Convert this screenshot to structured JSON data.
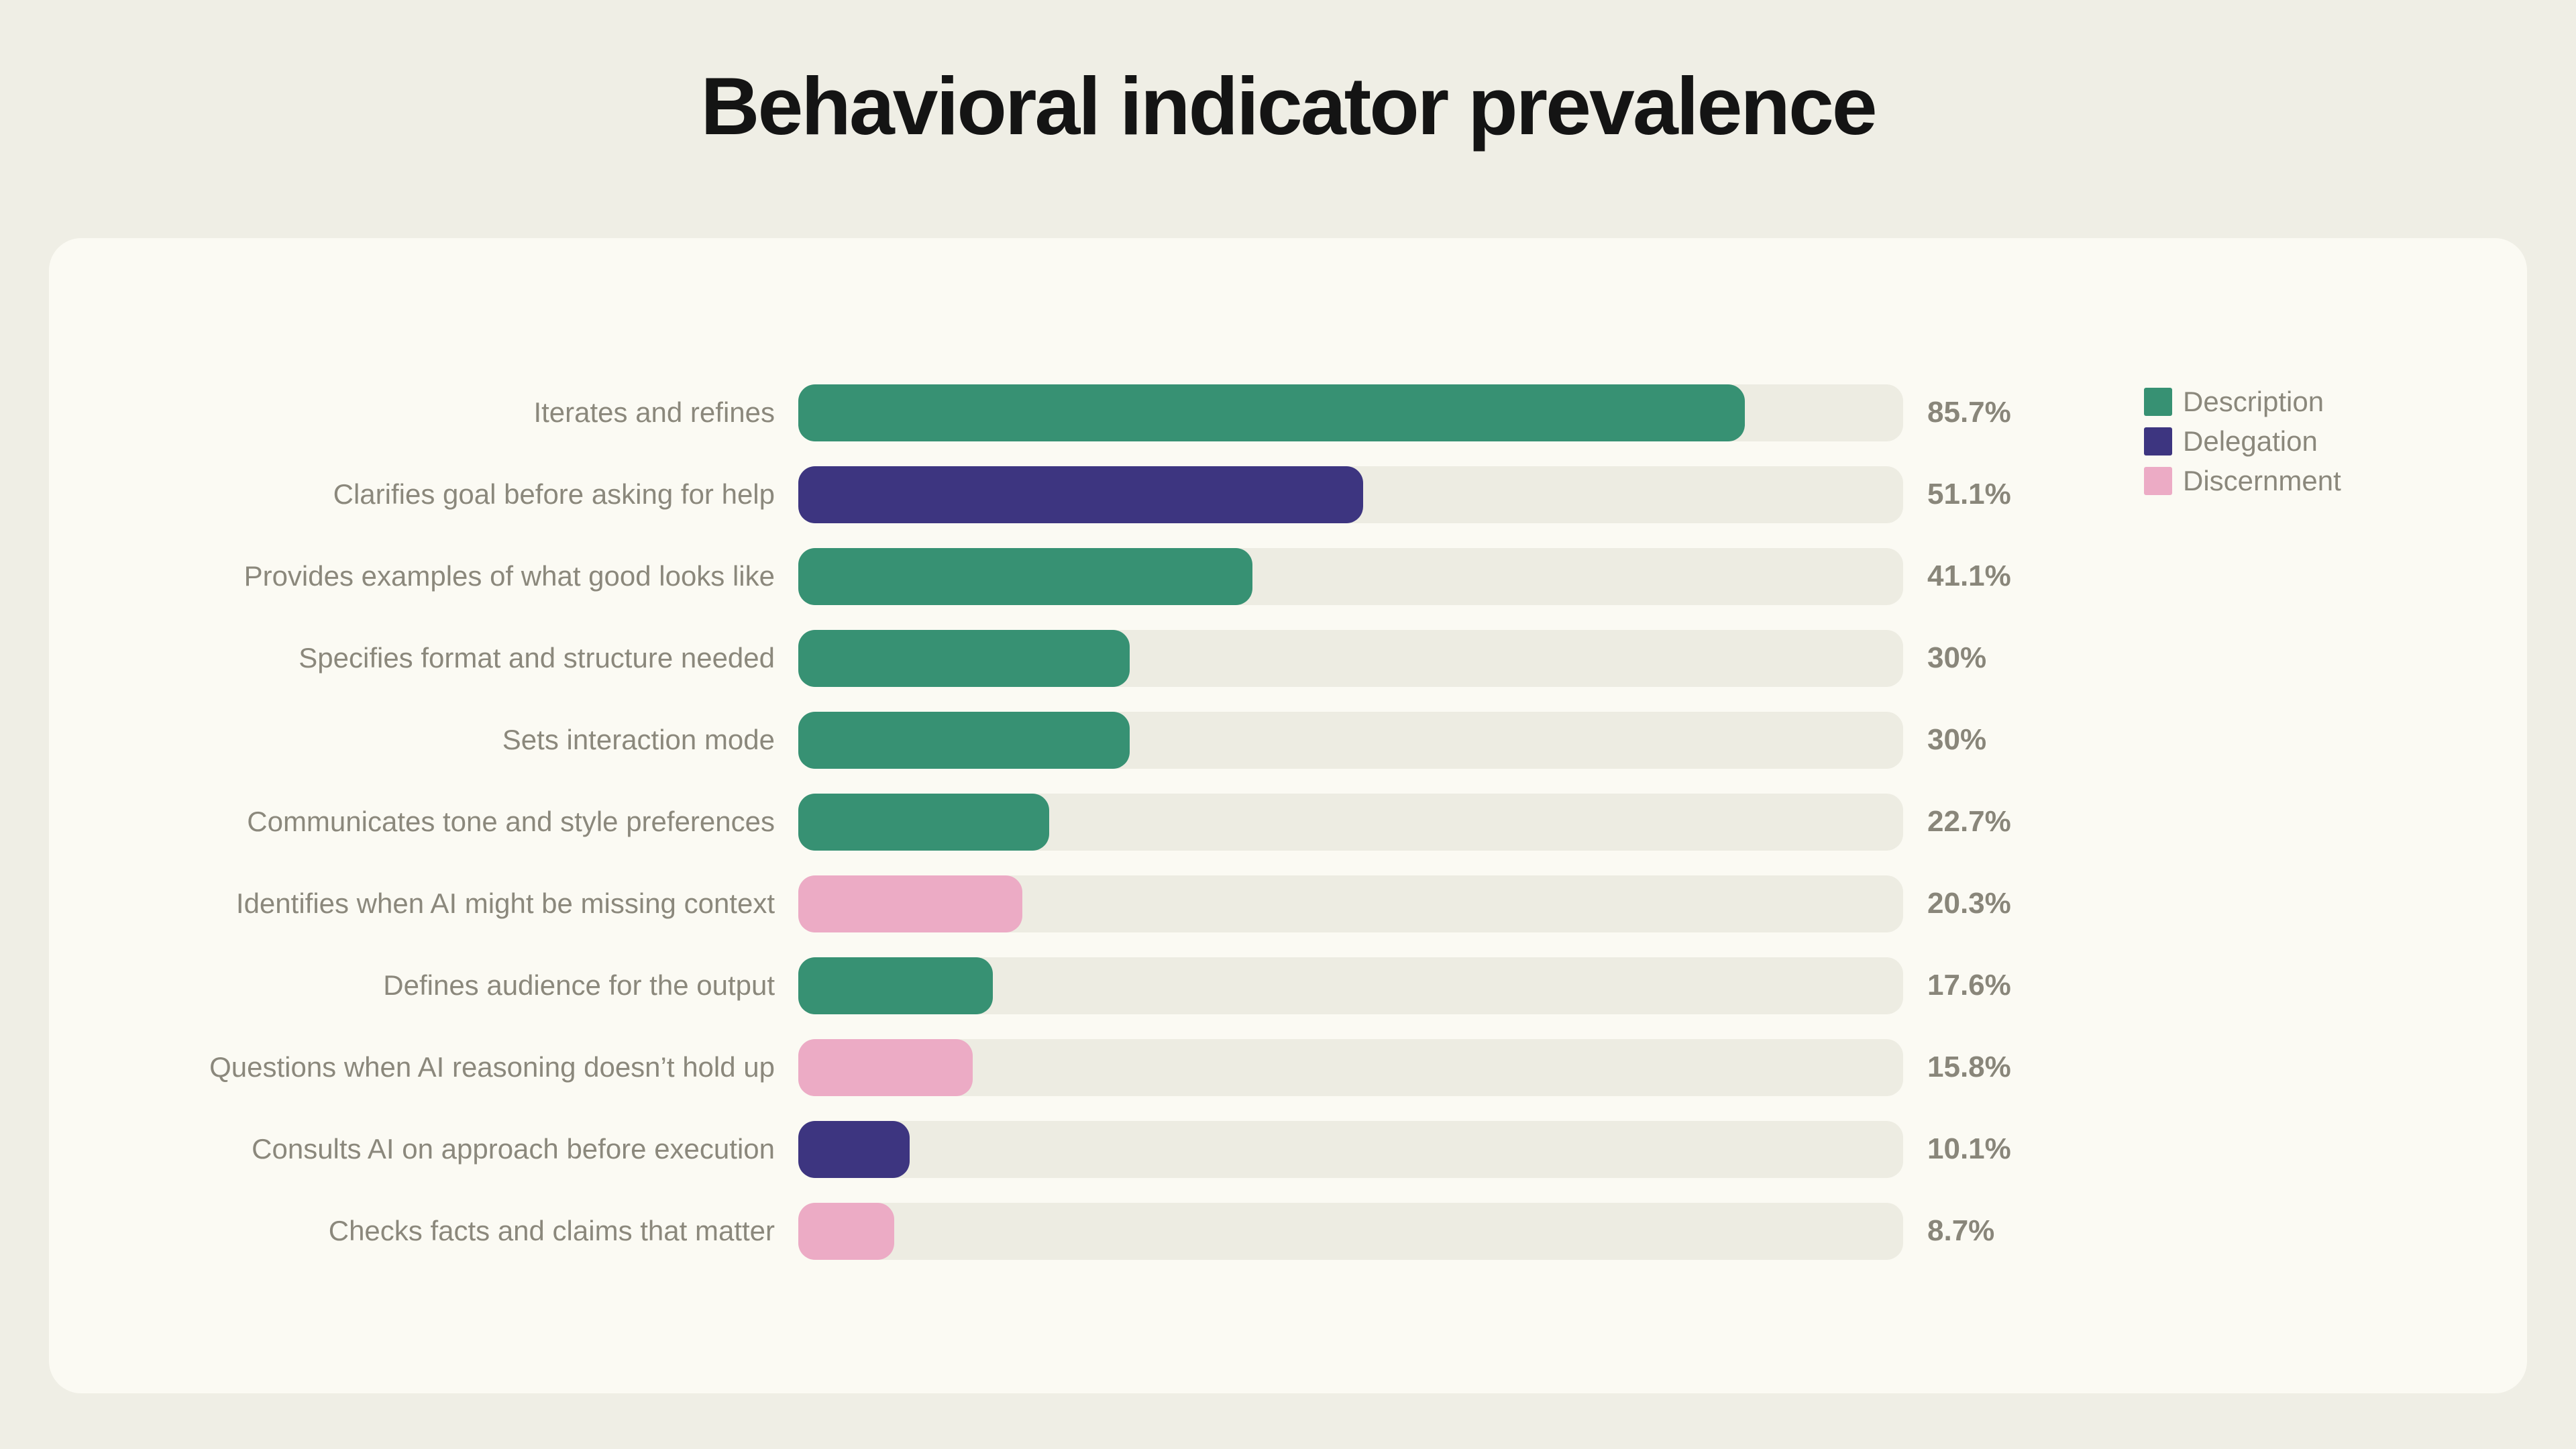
{
  "page": {
    "background": "#EFEEE5",
    "title": "Behavioral indicator prevalence"
  },
  "card": {
    "background": "#FBFAF3"
  },
  "legend": [
    {
      "label": "Description",
      "color": "#379173"
    },
    {
      "label": "Delegation",
      "color": "#3D3580"
    },
    {
      "label": "Discernment",
      "color": "#ECABC5"
    }
  ],
  "chart_data": {
    "type": "bar",
    "orientation": "horizontal",
    "title": "Behavioral indicator prevalence",
    "xlabel": "",
    "ylabel": "",
    "xlim": [
      0,
      100
    ],
    "grid": false,
    "legend_position": "top-right",
    "track_color": "#EDECE2",
    "series_colors": {
      "Description": "#379173",
      "Delegation": "#3D3580",
      "Discernment": "#ECABC5"
    },
    "bars": [
      {
        "label": "Iterates and refines",
        "value": 85.7,
        "display": "85.7%",
        "series": "Description"
      },
      {
        "label": "Clarifies goal before asking for help",
        "value": 51.1,
        "display": "51.1%",
        "series": "Delegation"
      },
      {
        "label": "Provides examples of what good looks like",
        "value": 41.1,
        "display": "41.1%",
        "series": "Description"
      },
      {
        "label": "Specifies format and structure needed",
        "value": 30,
        "display": "30%",
        "series": "Description"
      },
      {
        "label": "Sets interaction mode",
        "value": 30,
        "display": "30%",
        "series": "Description"
      },
      {
        "label": "Communicates tone and style preferences",
        "value": 22.7,
        "display": "22.7%",
        "series": "Description"
      },
      {
        "label": "Identifies when AI might be missing context",
        "value": 20.3,
        "display": "20.3%",
        "series": "Discernment"
      },
      {
        "label": "Defines audience for the output",
        "value": 17.6,
        "display": "17.6%",
        "series": "Description"
      },
      {
        "label": "Questions when AI reasoning doesn’t hold up",
        "value": 15.8,
        "display": "15.8%",
        "series": "Discernment"
      },
      {
        "label": "Consults AI on approach before execution",
        "value": 10.1,
        "display": "10.1%",
        "series": "Delegation"
      },
      {
        "label": "Checks facts and claims that matter",
        "value": 8.7,
        "display": "8.7%",
        "series": "Discernment"
      }
    ]
  }
}
